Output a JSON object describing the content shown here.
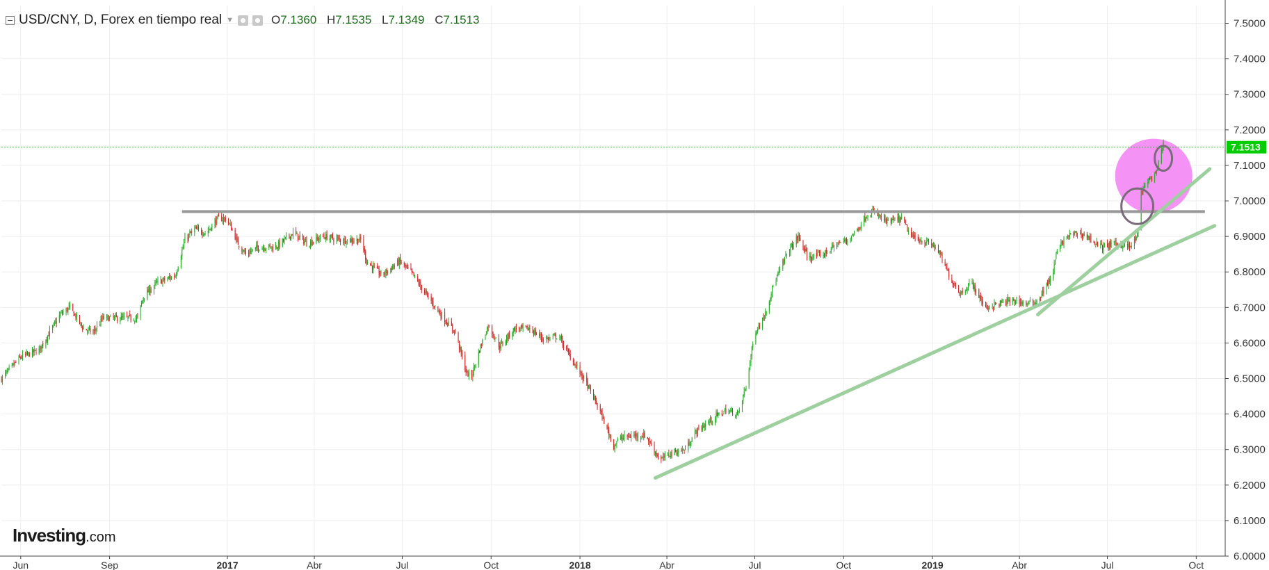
{
  "header": {
    "title": "USD/CNY, D, Forex en tiempo real",
    "ohlc": [
      {
        "label": "O",
        "value": "7.1360"
      },
      {
        "label": "H",
        "value": "7.1535"
      },
      {
        "label": "L",
        "value": "7.1349"
      },
      {
        "label": "C",
        "value": "7.1513"
      }
    ]
  },
  "logo": {
    "brand": "Investing",
    "domain": ".com"
  },
  "colors": {
    "up": "#22aa22",
    "down": "#cc2222",
    "grid": "#eeeeee",
    "axis": "#444444",
    "price_line": "#22cc22",
    "price_tag": "#00cc00",
    "resistance": "#999999",
    "trendline": "#9ecf9e",
    "highlight": "#f48cf4",
    "circle": "#7a6a7a"
  },
  "chart_data": {
    "type": "candlestick",
    "title": "USD/CNY, D, Forex en tiempo real",
    "ylim": [
      6.0,
      7.55
    ],
    "y_ticks": [
      "6.0000",
      "6.1000",
      "6.2000",
      "6.3000",
      "6.4000",
      "6.5000",
      "6.6000",
      "6.7000",
      "6.8000",
      "6.9000",
      "7.0000",
      "7.1000",
      "7.2000",
      "7.3000",
      "7.4000",
      "7.5000"
    ],
    "x_range": [
      "2016-05-12",
      "2019-10-31"
    ],
    "x_ticks": [
      {
        "date": "2016-06-01",
        "label": "Jun",
        "bold": false
      },
      {
        "date": "2016-09-01",
        "label": "Sep",
        "bold": false
      },
      {
        "date": "2017-01-01",
        "label": "2017",
        "bold": true
      },
      {
        "date": "2017-04-01",
        "label": "Abr",
        "bold": false
      },
      {
        "date": "2017-07-01",
        "label": "Jul",
        "bold": false
      },
      {
        "date": "2017-10-01",
        "label": "Oct",
        "bold": false
      },
      {
        "date": "2018-01-01",
        "label": "2018",
        "bold": true
      },
      {
        "date": "2018-04-01",
        "label": "Abr",
        "bold": false
      },
      {
        "date": "2018-07-01",
        "label": "Jul",
        "bold": false
      },
      {
        "date": "2018-10-01",
        "label": "Oct",
        "bold": false
      },
      {
        "date": "2019-01-01",
        "label": "2019",
        "bold": true
      },
      {
        "date": "2019-04-01",
        "label": "Abr",
        "bold": false
      },
      {
        "date": "2019-07-01",
        "label": "Jul",
        "bold": false
      },
      {
        "date": "2019-10-01",
        "label": "Oct",
        "bold": false
      }
    ],
    "price_series": [
      [
        "2016-05-12",
        6.5
      ],
      [
        "2016-06-01",
        6.56
      ],
      [
        "2016-06-20",
        6.58
      ],
      [
        "2016-07-12",
        6.68
      ],
      [
        "2016-07-22",
        6.7
      ],
      [
        "2016-08-05",
        6.64
      ],
      [
        "2016-08-15",
        6.63
      ],
      [
        "2016-08-25",
        6.67
      ],
      [
        "2016-09-05",
        6.67
      ],
      [
        "2016-09-30",
        6.67
      ],
      [
        "2016-10-06",
        6.73
      ],
      [
        "2016-10-20",
        6.77
      ],
      [
        "2016-10-31",
        6.78
      ],
      [
        "2016-11-08",
        6.79
      ],
      [
        "2016-11-18",
        6.89
      ],
      [
        "2016-11-28",
        6.92
      ],
      [
        "2016-12-10",
        6.91
      ],
      [
        "2016-12-22",
        6.95
      ],
      [
        "2016-12-30",
        6.95
      ],
      [
        "2017-01-04",
        6.93
      ],
      [
        "2017-01-12",
        6.88
      ],
      [
        "2017-01-20",
        6.85
      ],
      [
        "2017-02-02",
        6.87
      ],
      [
        "2017-02-20",
        6.87
      ],
      [
        "2017-03-10",
        6.91
      ],
      [
        "2017-03-25",
        6.88
      ],
      [
        "2017-04-10",
        6.9
      ],
      [
        "2017-04-30",
        6.89
      ],
      [
        "2017-05-20",
        6.89
      ],
      [
        "2017-05-25",
        6.83
      ],
      [
        "2017-06-10",
        6.79
      ],
      [
        "2017-06-28",
        6.83
      ],
      [
        "2017-07-10",
        6.8
      ],
      [
        "2017-07-25",
        6.74
      ],
      [
        "2017-08-10",
        6.68
      ],
      [
        "2017-08-25",
        6.63
      ],
      [
        "2017-09-05",
        6.52
      ],
      [
        "2017-09-10",
        6.5
      ],
      [
        "2017-09-20",
        6.59
      ],
      [
        "2017-09-28",
        6.65
      ],
      [
        "2017-10-10",
        6.59
      ],
      [
        "2017-10-25",
        6.64
      ],
      [
        "2017-11-10",
        6.64
      ],
      [
        "2017-11-25",
        6.61
      ],
      [
        "2017-12-10",
        6.62
      ],
      [
        "2017-12-20",
        6.57
      ],
      [
        "2018-01-05",
        6.5
      ],
      [
        "2018-01-20",
        6.42
      ],
      [
        "2018-02-05",
        6.31
      ],
      [
        "2018-02-10",
        6.33
      ],
      [
        "2018-02-25",
        6.34
      ],
      [
        "2018-03-10",
        6.34
      ],
      [
        "2018-03-25",
        6.27
      ],
      [
        "2018-04-05",
        6.29
      ],
      [
        "2018-04-20",
        6.3
      ],
      [
        "2018-05-01",
        6.35
      ],
      [
        "2018-05-20",
        6.39
      ],
      [
        "2018-06-01",
        6.41
      ],
      [
        "2018-06-14",
        6.4
      ],
      [
        "2018-06-22",
        6.48
      ],
      [
        "2018-07-01",
        6.63
      ],
      [
        "2018-07-10",
        6.67
      ],
      [
        "2018-07-20",
        6.76
      ],
      [
        "2018-08-03",
        6.85
      ],
      [
        "2018-08-15",
        6.9
      ],
      [
        "2018-08-25",
        6.84
      ],
      [
        "2018-09-10",
        6.85
      ],
      [
        "2018-09-25",
        6.88
      ],
      [
        "2018-10-05",
        6.89
      ],
      [
        "2018-10-15",
        6.92
      ],
      [
        "2018-10-25",
        6.96
      ],
      [
        "2018-10-31",
        6.97
      ],
      [
        "2018-11-15",
        6.94
      ],
      [
        "2018-11-30",
        6.95
      ],
      [
        "2018-12-10",
        6.9
      ],
      [
        "2018-12-28",
        6.88
      ],
      [
        "2019-01-05",
        6.87
      ],
      [
        "2019-01-20",
        6.78
      ],
      [
        "2019-01-30",
        6.74
      ],
      [
        "2019-02-10",
        6.77
      ],
      [
        "2019-02-25",
        6.7
      ],
      [
        "2019-03-10",
        6.71
      ],
      [
        "2019-03-25",
        6.72
      ],
      [
        "2019-04-10",
        6.71
      ],
      [
        "2019-04-20",
        6.72
      ],
      [
        "2019-05-05",
        6.79
      ],
      [
        "2019-05-10",
        6.86
      ],
      [
        "2019-05-20",
        6.9
      ],
      [
        "2019-06-01",
        6.91
      ],
      [
        "2019-06-10",
        6.9
      ],
      [
        "2019-06-25",
        6.87
      ],
      [
        "2019-07-10",
        6.88
      ],
      [
        "2019-07-25",
        6.87
      ],
      [
        "2019-08-01",
        6.9
      ],
      [
        "2019-08-05",
        7.02
      ],
      [
        "2019-08-12",
        7.06
      ],
      [
        "2019-08-20",
        7.07
      ],
      [
        "2019-08-28",
        7.16
      ]
    ],
    "last_price": {
      "value": 7.1513,
      "label": "7.1513"
    },
    "annotations": [
      {
        "type": "horizontal-line",
        "value": 6.97,
        "from": "2016-11-15",
        "to": "2019-10-10"
      },
      {
        "type": "trendline",
        "from": [
          "2018-03-20",
          6.22
        ],
        "to": [
          "2019-10-20",
          6.93
        ]
      },
      {
        "type": "trendline",
        "from": [
          "2019-04-20",
          6.68
        ],
        "to": [
          "2019-10-15",
          7.09
        ]
      },
      {
        "type": "highlight-ellipse",
        "center": [
          "2019-08-18",
          7.07
        ],
        "span_days": 80,
        "span_price": 0.21
      },
      {
        "type": "circle",
        "center": [
          "2019-08-01",
          6.985
        ],
        "span_days": 33,
        "span_price": 0.1
      },
      {
        "type": "circle",
        "center": [
          "2019-08-28",
          7.12
        ],
        "span_days": 18,
        "span_price": 0.07
      }
    ]
  }
}
